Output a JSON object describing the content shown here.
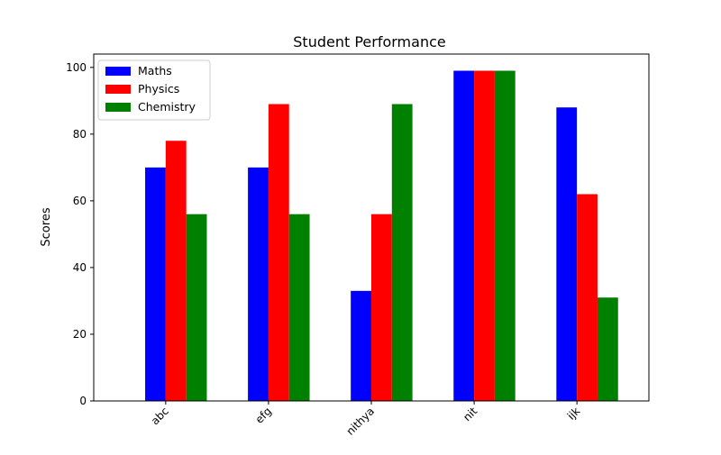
{
  "chart_data": {
    "type": "bar",
    "title": "Student Performance",
    "xlabel": "",
    "ylabel": "Scores",
    "categories": [
      "abc",
      "efg",
      "nithya",
      "nit",
      "ijk"
    ],
    "series": [
      {
        "name": "Maths",
        "color": "#0000ff",
        "values": [
          70,
          70,
          33,
          99,
          88
        ]
      },
      {
        "name": "Physics",
        "color": "#ff0000",
        "values": [
          78,
          89,
          56,
          99,
          62
        ]
      },
      {
        "name": "Chemistry",
        "color": "#008000",
        "values": [
          56,
          56,
          89,
          99,
          31
        ]
      }
    ],
    "ylim": [
      0,
      104
    ],
    "yticks": [
      0,
      20,
      40,
      60,
      80,
      100
    ],
    "grid": false,
    "legend_position": "top-left",
    "xtick_rotation": -45
  }
}
